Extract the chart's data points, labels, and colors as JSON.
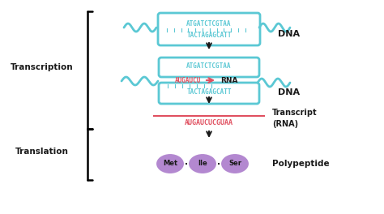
{
  "bg_color": "#ffffff",
  "dna_color": "#5bc8d4",
  "rna_color": "#e05060",
  "text_color": "#1a1a1a",
  "purple_color": "#b388d0",
  "dna_top_seq": "ATGATCTCGTAA",
  "dna_bot_seq": "TACTAGAGCATT",
  "rna_seq": "AUGAUCU",
  "mrna_full": "AUGAUCUCGUAA",
  "dna_mid_top": "ATGATCTCGTAA",
  "dna_mid_bot": "TACTAGAGCATT",
  "amino_acids": [
    "Met",
    "Ile",
    "Ser"
  ],
  "label_transcription": "Transcription",
  "label_translation": "Translation",
  "label_dna": "DNA",
  "label_rna": "RNA",
  "label_transcript": "Transcript\n(RNA)",
  "label_polypeptide": "Polypeptide"
}
